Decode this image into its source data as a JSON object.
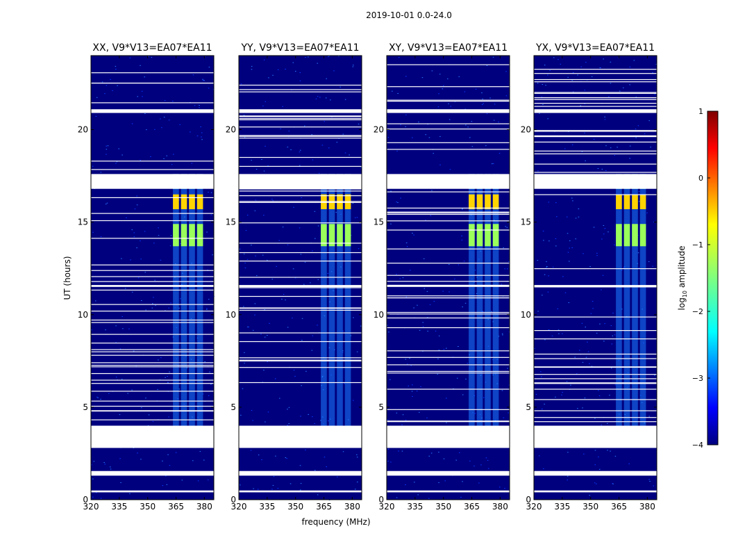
{
  "chart_data": {
    "type": "heatmap",
    "suptitle": "2019-10-01 0.0-24.0",
    "panels": [
      {
        "title": "XX, V9*V13=EA07*EA11"
      },
      {
        "title": "YY, V9*V13=EA07*EA11"
      },
      {
        "title": "XY, V9*V13=EA07*EA11"
      },
      {
        "title": "YX, V9*V13=EA07*EA11"
      }
    ],
    "xlabel": "frequency (MHz)",
    "ylabel": "UT (hours)",
    "xlim": [
      320,
      385
    ],
    "ylim": [
      0,
      24
    ],
    "xticks": [
      320,
      335,
      350,
      365,
      380
    ],
    "yticks": [
      0,
      5,
      10,
      15,
      20
    ],
    "colorbar": {
      "label_main": "log",
      "label_sub": "10",
      "label_rest": " amplitude",
      "range": [
        -4,
        1
      ],
      "ticks": [
        1,
        0,
        -1,
        -2,
        -3,
        -4
      ]
    },
    "flagged_hours": [
      [
        2.8,
        4.0
      ],
      [
        1.3,
        1.55
      ],
      [
        20.9,
        21.1
      ],
      [
        16.8,
        17.6
      ],
      [
        11.5,
        11.6
      ],
      [
        0.4,
        0.5
      ]
    ],
    "rfi_band_mhz": [
      363,
      380
    ],
    "colors": {
      "background": "#00007f",
      "flag": "#ffffff"
    }
  }
}
